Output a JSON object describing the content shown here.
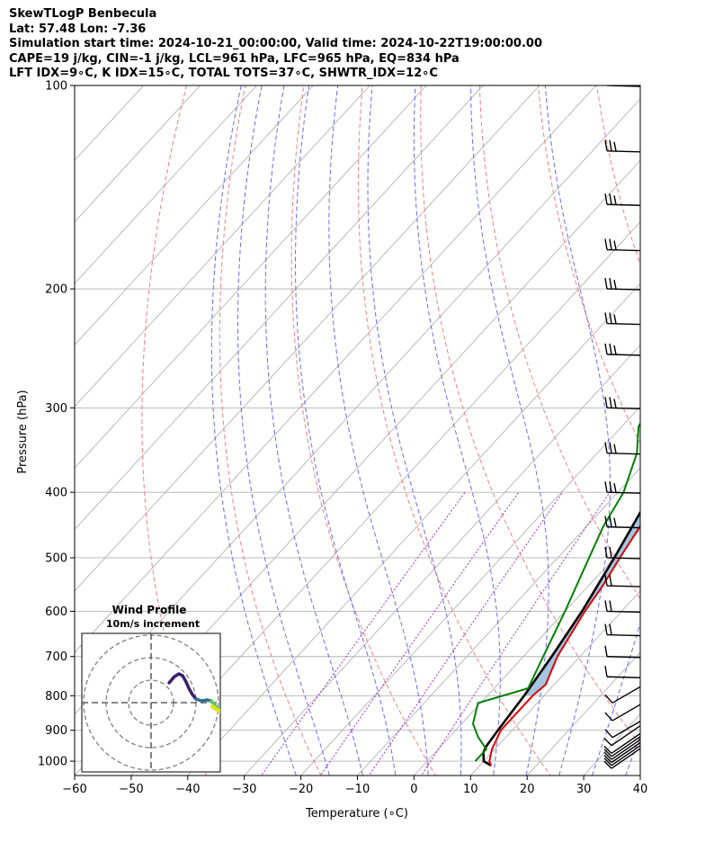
{
  "header": {
    "line1": "SkewTLogP Benbecula",
    "line2": "Lat: 57.48   Lon: -7.36",
    "line3": "Simulation start time: 2024-10-21_00:00:00, Valid time: 2024-10-22T19:00:00.00",
    "line4": "CAPE=19 j/kg, CIN=-1 j/kg, LCL=961 hPa, LFC=965 hPa, EQ=834 hPa",
    "line5": "LFT IDX=9∘C, K IDX=15∘C, TOTAL TOTS=37∘C, SHWTR_IDX=12∘C"
  },
  "chart_data": {
    "type": "line",
    "subtype": "skew-t log-p",
    "xlabel": "Temperature (∘C)",
    "ylabel": "Pressure (hPa)",
    "xlim": [
      -60,
      40
    ],
    "ylim": [
      1050,
      100
    ],
    "y_scale": "log",
    "x_ticks": [
      -60,
      -50,
      -40,
      -30,
      -20,
      -10,
      0,
      10,
      20,
      30,
      40
    ],
    "x_tick_labels": [
      "−60",
      "−50",
      "−40",
      "−30",
      "−20",
      "−10",
      "0",
      "10",
      "20",
      "30",
      "40"
    ],
    "y_ticks": [
      1000,
      900,
      800,
      700,
      600,
      500,
      400,
      300,
      200,
      100
    ],
    "grid": true,
    "colors": {
      "temperature": "#e00000",
      "dewpoint": "#008000",
      "parcel": "#000000",
      "cape_fill": "#a4c6e0",
      "dry_adiabats": "#f08080",
      "moist_adiabats": "#6a6af0",
      "mixing_ratio": "#9b30c8",
      "isotherms": "#aaaaaa"
    },
    "series": [
      {
        "key": "temperature",
        "points": [
          [
            1015,
            12
          ],
          [
            1000,
            11
          ],
          [
            960,
            9.5
          ],
          [
            900,
            8
          ],
          [
            850,
            8
          ],
          [
            800,
            8
          ],
          [
            770,
            8.5
          ],
          [
            700,
            6
          ],
          [
            600,
            3.5
          ],
          [
            550,
            2.5
          ],
          [
            500,
            1
          ],
          [
            450,
            -0.5
          ],
          [
            400,
            -3.5
          ],
          [
            350,
            -7.5
          ],
          [
            300,
            -13.5
          ],
          [
            270,
            -19
          ],
          [
            250,
            -22
          ],
          [
            230,
            -22
          ],
          [
            210,
            -24
          ],
          [
            200,
            -26
          ],
          [
            180,
            -28
          ],
          [
            160,
            -33
          ],
          [
            150,
            -37
          ],
          [
            140,
            -38
          ],
          [
            130,
            -41
          ],
          [
            120,
            -46
          ],
          [
            110,
            -49
          ],
          [
            100,
            -52
          ]
        ]
      },
      {
        "key": "dewpoint",
        "points": [
          [
            1000,
            8.5
          ],
          [
            960,
            8.5
          ],
          [
            920,
            5
          ],
          [
            880,
            2
          ],
          [
            820,
            -0.5
          ],
          [
            780,
            6
          ],
          [
            700,
            3.5
          ],
          [
            600,
            0
          ],
          [
            520,
            -3.5
          ],
          [
            450,
            -7
          ],
          [
            400,
            -9
          ],
          [
            350,
            -13
          ],
          [
            320,
            -17
          ],
          [
            290,
            -19
          ],
          [
            260,
            -22
          ],
          [
            240,
            -22
          ],
          [
            220,
            -23
          ],
          [
            200,
            -26
          ],
          [
            180,
            -29
          ],
          [
            165,
            -33
          ],
          [
            150,
            -35
          ],
          [
            140,
            -34
          ],
          [
            130,
            -36
          ],
          [
            120,
            -40
          ],
          [
            110,
            -45
          ],
          [
            100,
            -50
          ]
        ]
      },
      {
        "key": "parcel",
        "points": [
          [
            1015,
            12
          ],
          [
            1000,
            10
          ],
          [
            970,
            8.5
          ],
          [
            950,
            8
          ],
          [
            900,
            7.5
          ],
          [
            850,
            7
          ],
          [
            800,
            6.5
          ],
          [
            700,
            5
          ],
          [
            600,
            3
          ],
          [
            500,
            0
          ],
          [
            400,
            -4
          ],
          [
            300,
            -12.5
          ],
          [
            250,
            -18.5
          ],
          [
            200,
            -27
          ],
          [
            150,
            -39
          ],
          [
            100,
            -56
          ]
        ]
      }
    ],
    "wind_barbs": {
      "pressures": [
        1000,
        990,
        980,
        970,
        960,
        950,
        925,
        900,
        850,
        800,
        750,
        700,
        650,
        600,
        550,
        500,
        450,
        400,
        350,
        300,
        250,
        225,
        200,
        175,
        150,
        125,
        100
      ]
    },
    "hodograph": {
      "title": "Wind Profile",
      "subtitle": "10m/s increment"
    }
  }
}
